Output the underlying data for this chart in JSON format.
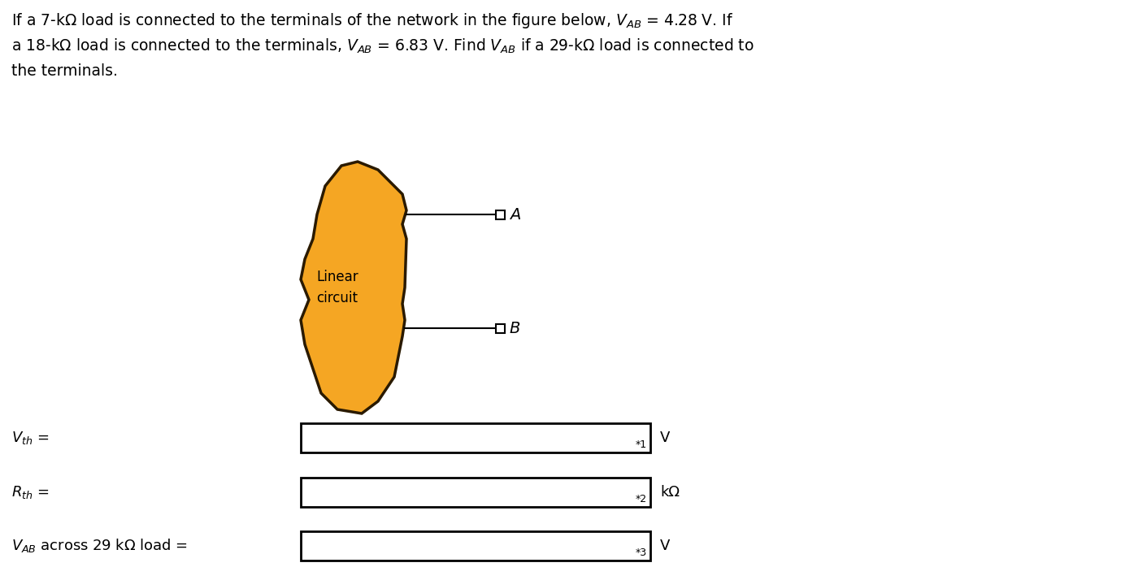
{
  "bg_color": "#ffffff",
  "text_color": "#000000",
  "blob_color": "#F5A623",
  "blob_edge_color": "#2a1a00",
  "line1": "If a 7-kΩ load is connected to the terminals of the network in the figure below, $V_{AB}$ = 4.28 V. If",
  "line2": "a 18-kΩ load is connected to the terminals, $V_{AB}$ = 6.83 V. Find $V_{AB}$ if a 29-kΩ load is connected to",
  "line3": "the terminals.",
  "circuit_label": "Linear\ncircuit",
  "label_Vth": "$V_{th}$ =",
  "label_Rth": "$R_{th}$ =",
  "label_VAB": "$V_{AB}$ across 29 kΩ load =",
  "unit_1": "V",
  "unit_2": "kΩ",
  "unit_3": "V",
  "marker_1": "*1",
  "marker_2": "*2",
  "marker_3": "*3",
  "fontsize_body": 13.5,
  "fontsize_circuit": 12,
  "fontsize_labels": 13,
  "fontsize_marker": 9
}
